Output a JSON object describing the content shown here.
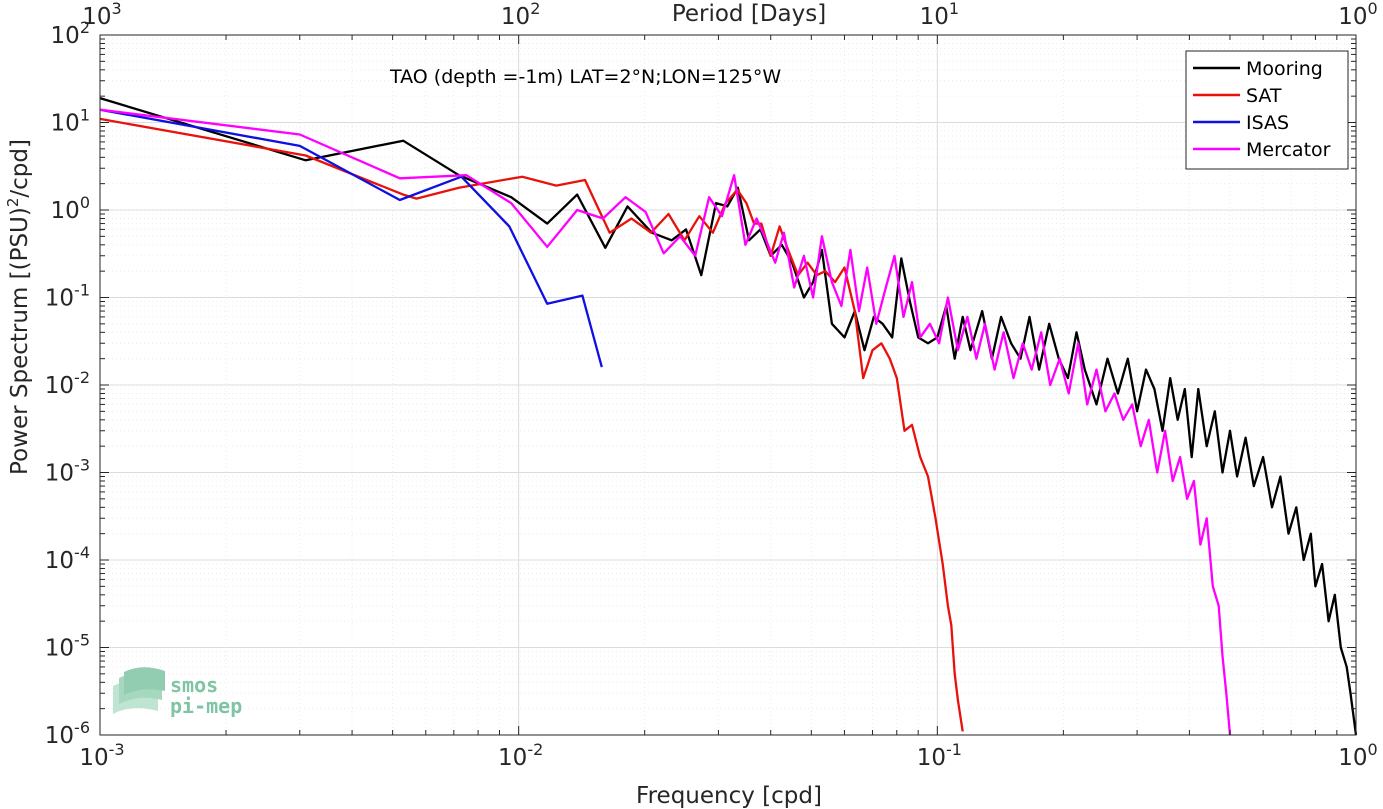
{
  "chart_data": {
    "type": "line",
    "annotation": "TAO (depth =-1m) LAT=2°N;LON=125°W",
    "xlabel": "Frequency [cpd]",
    "ylabel": "Power Spectrum [(PSU)",
    "ylabel_sup": "2",
    "ylabel_tail": "/cpd]",
    "top_axis_label": "Period [Days]",
    "x_scale": "log",
    "y_scale": "log",
    "xlim": [
      0.001,
      1
    ],
    "ylim": [
      1e-06,
      100
    ],
    "grid": true,
    "legend_position": "top-right",
    "x_ticks": [
      {
        "value": 0.001,
        "base": "10",
        "exp": "-3"
      },
      {
        "value": 0.01,
        "base": "10",
        "exp": "-2"
      },
      {
        "value": 0.1,
        "base": "10",
        "exp": "-1"
      },
      {
        "value": 1,
        "base": "10",
        "exp": "0"
      }
    ],
    "top_ticks": [
      {
        "value": 0.001,
        "base": "10",
        "exp": "3"
      },
      {
        "value": 0.01,
        "base": "10",
        "exp": "2"
      },
      {
        "value": 0.1,
        "base": "10",
        "exp": "1"
      },
      {
        "value": 1,
        "base": "10",
        "exp": "0"
      }
    ],
    "y_ticks": [
      {
        "value": 100,
        "base": "10",
        "exp": "2"
      },
      {
        "value": 10,
        "base": "10",
        "exp": "1"
      },
      {
        "value": 1,
        "base": "10",
        "exp": "0"
      },
      {
        "value": 0.1,
        "base": "10",
        "exp": "-1"
      },
      {
        "value": 0.01,
        "base": "10",
        "exp": "-2"
      },
      {
        "value": 0.001,
        "base": "10",
        "exp": "-3"
      },
      {
        "value": 0.0001,
        "base": "10",
        "exp": "-4"
      },
      {
        "value": 1e-05,
        "base": "10",
        "exp": "-5"
      },
      {
        "value": 1e-06,
        "base": "10",
        "exp": "-6"
      }
    ],
    "series": [
      {
        "name": "Mooring",
        "color": "#000000",
        "points": [
          [
            0.001,
            19
          ],
          [
            0.0031,
            3.7
          ],
          [
            0.0053,
            6.2
          ],
          [
            0.0072,
            2.5
          ],
          [
            0.0096,
            1.4
          ],
          [
            0.0117,
            0.7
          ],
          [
            0.0138,
            1.5
          ],
          [
            0.0161,
            0.37
          ],
          [
            0.0182,
            1.1
          ],
          [
            0.0208,
            0.55
          ],
          [
            0.0232,
            0.45
          ],
          [
            0.0251,
            0.6
          ],
          [
            0.0273,
            0.18
          ],
          [
            0.0296,
            1.2
          ],
          [
            0.0315,
            1.1
          ],
          [
            0.0334,
            1.8
          ],
          [
            0.0355,
            0.45
          ],
          [
            0.0378,
            0.6
          ],
          [
            0.04,
            0.3
          ],
          [
            0.0425,
            0.4
          ],
          [
            0.045,
            0.25
          ],
          [
            0.048,
            0.1
          ],
          [
            0.0505,
            0.15
          ],
          [
            0.053,
            0.35
          ],
          [
            0.056,
            0.05
          ],
          [
            0.06,
            0.035
          ],
          [
            0.0635,
            0.07
          ],
          [
            0.067,
            0.025
          ],
          [
            0.0705,
            0.06
          ],
          [
            0.074,
            0.05
          ],
          [
            0.078,
            0.035
          ],
          [
            0.082,
            0.28
          ],
          [
            0.086,
            0.09
          ],
          [
            0.09,
            0.035
          ],
          [
            0.095,
            0.03
          ],
          [
            0.1,
            0.035
          ],
          [
            0.105,
            0.08
          ],
          [
            0.11,
            0.02
          ],
          [
            0.115,
            0.06
          ],
          [
            0.12,
            0.025
          ],
          [
            0.128,
            0.07
          ],
          [
            0.135,
            0.02
          ],
          [
            0.142,
            0.06
          ],
          [
            0.15,
            0.03
          ],
          [
            0.158,
            0.02
          ],
          [
            0.166,
            0.06
          ],
          [
            0.175,
            0.015
          ],
          [
            0.185,
            0.05
          ],
          [
            0.195,
            0.02
          ],
          [
            0.205,
            0.012
          ],
          [
            0.215,
            0.04
          ],
          [
            0.225,
            0.015
          ],
          [
            0.24,
            0.006
          ],
          [
            0.255,
            0.02
          ],
          [
            0.27,
            0.008
          ],
          [
            0.285,
            0.02
          ],
          [
            0.3,
            0.005
          ],
          [
            0.315,
            0.015
          ],
          [
            0.33,
            0.009
          ],
          [
            0.345,
            0.003
          ],
          [
            0.36,
            0.012
          ],
          [
            0.375,
            0.004
          ],
          [
            0.39,
            0.009
          ],
          [
            0.405,
            0.0015
          ],
          [
            0.42,
            0.009
          ],
          [
            0.44,
            0.002
          ],
          [
            0.46,
            0.005
          ],
          [
            0.48,
            0.001
          ],
          [
            0.5,
            0.003
          ],
          [
            0.52,
            0.0009
          ],
          [
            0.545,
            0.0025
          ],
          [
            0.57,
            0.0007
          ],
          [
            0.6,
            0.0015
          ],
          [
            0.63,
            0.0004
          ],
          [
            0.66,
            0.0009
          ],
          [
            0.69,
            0.0002
          ],
          [
            0.72,
            0.0004
          ],
          [
            0.75,
            0.0001
          ],
          [
            0.78,
            0.0002
          ],
          [
            0.8,
            5e-05
          ],
          [
            0.83,
            9e-05
          ],
          [
            0.86,
            2e-05
          ],
          [
            0.89,
            4e-05
          ],
          [
            0.92,
            1e-05
          ],
          [
            0.95,
            6e-06
          ],
          [
            0.97,
            3e-06
          ],
          [
            1,
            1e-06
          ]
        ]
      },
      {
        "name": "SAT",
        "color": "#e8120c",
        "points": [
          [
            0.001,
            11
          ],
          [
            0.0031,
            4.2
          ],
          [
            0.0053,
            1.5
          ],
          [
            0.0057,
            1.35
          ],
          [
            0.0072,
            1.8
          ],
          [
            0.0102,
            2.4
          ],
          [
            0.0123,
            1.9
          ],
          [
            0.0144,
            2.2
          ],
          [
            0.0165,
            0.55
          ],
          [
            0.0186,
            0.8
          ],
          [
            0.0207,
            0.55
          ],
          [
            0.0228,
            0.9
          ],
          [
            0.0249,
            0.45
          ],
          [
            0.027,
            0.85
          ],
          [
            0.0291,
            0.55
          ],
          [
            0.0312,
            1.2
          ],
          [
            0.0333,
            1.7
          ],
          [
            0.035,
            1.2
          ],
          [
            0.0365,
            0.7
          ],
          [
            0.038,
            0.7
          ],
          [
            0.04,
            0.3
          ],
          [
            0.042,
            0.65
          ],
          [
            0.044,
            0.35
          ],
          [
            0.0465,
            0.18
          ],
          [
            0.049,
            0.25
          ],
          [
            0.0515,
            0.18
          ],
          [
            0.054,
            0.2
          ],
          [
            0.057,
            0.15
          ],
          [
            0.06,
            0.22
          ],
          [
            0.0635,
            0.07
          ],
          [
            0.0665,
            0.012
          ],
          [
            0.07,
            0.025
          ],
          [
            0.0735,
            0.03
          ],
          [
            0.077,
            0.02
          ],
          [
            0.08,
            0.012
          ],
          [
            0.0835,
            0.003
          ],
          [
            0.087,
            0.0035
          ],
          [
            0.091,
            0.0015
          ],
          [
            0.095,
            0.0009
          ],
          [
            0.099,
            0.0003
          ],
          [
            0.103,
            9e-05
          ],
          [
            0.106,
            3e-05
          ],
          [
            0.108,
            1.8e-05
          ],
          [
            0.11,
            5e-06
          ],
          [
            0.112,
            2.5e-06
          ],
          [
            0.115,
            1.1e-06
          ]
        ]
      },
      {
        "name": "ISAS",
        "color": "#1010e0",
        "points": [
          [
            0.001,
            14
          ],
          [
            0.003,
            5.4
          ],
          [
            0.0052,
            1.3
          ],
          [
            0.0073,
            2.4
          ],
          [
            0.0095,
            0.65
          ],
          [
            0.0117,
            0.085
          ],
          [
            0.0142,
            0.105
          ],
          [
            0.0158,
            0.016
          ]
        ]
      },
      {
        "name": "Mercator",
        "color": "#ff00ff",
        "points": [
          [
            0.001,
            14
          ],
          [
            0.003,
            7.3
          ],
          [
            0.0052,
            2.3
          ],
          [
            0.0075,
            2.5
          ],
          [
            0.0096,
            1.2
          ],
          [
            0.0117,
            0.38
          ],
          [
            0.0138,
            1.0
          ],
          [
            0.0159,
            0.8
          ],
          [
            0.018,
            1.4
          ],
          [
            0.0201,
            0.95
          ],
          [
            0.0222,
            0.32
          ],
          [
            0.0243,
            0.5
          ],
          [
            0.0264,
            0.3
          ],
          [
            0.0285,
            1.4
          ],
          [
            0.0306,
            0.85
          ],
          [
            0.0327,
            2.5
          ],
          [
            0.0348,
            0.4
          ],
          [
            0.037,
            0.8
          ],
          [
            0.039,
            0.45
          ],
          [
            0.041,
            0.25
          ],
          [
            0.043,
            0.55
          ],
          [
            0.0455,
            0.13
          ],
          [
            0.048,
            0.3
          ],
          [
            0.0505,
            0.1
          ],
          [
            0.053,
            0.5
          ],
          [
            0.056,
            0.15
          ],
          [
            0.059,
            0.08
          ],
          [
            0.062,
            0.35
          ],
          [
            0.065,
            0.07
          ],
          [
            0.068,
            0.22
          ],
          [
            0.0715,
            0.05
          ],
          [
            0.075,
            0.12
          ],
          [
            0.079,
            0.3
          ],
          [
            0.083,
            0.06
          ],
          [
            0.087,
            0.15
          ],
          [
            0.091,
            0.035
          ],
          [
            0.096,
            0.05
          ],
          [
            0.101,
            0.03
          ],
          [
            0.106,
            0.1
          ],
          [
            0.112,
            0.025
          ],
          [
            0.118,
            0.06
          ],
          [
            0.124,
            0.02
          ],
          [
            0.13,
            0.05
          ],
          [
            0.137,
            0.015
          ],
          [
            0.144,
            0.04
          ],
          [
            0.152,
            0.012
          ],
          [
            0.16,
            0.03
          ],
          [
            0.168,
            0.015
          ],
          [
            0.177,
            0.04
          ],
          [
            0.186,
            0.01
          ],
          [
            0.196,
            0.02
          ],
          [
            0.206,
            0.008
          ],
          [
            0.217,
            0.03
          ],
          [
            0.228,
            0.006
          ],
          [
            0.24,
            0.015
          ],
          [
            0.252,
            0.005
          ],
          [
            0.265,
            0.008
          ],
          [
            0.278,
            0.004
          ],
          [
            0.292,
            0.006
          ],
          [
            0.306,
            0.002
          ],
          [
            0.32,
            0.004
          ],
          [
            0.335,
            0.001
          ],
          [
            0.35,
            0.003
          ],
          [
            0.365,
            0.0008
          ],
          [
            0.38,
            0.0015
          ],
          [
            0.395,
            0.0005
          ],
          [
            0.41,
            0.0008
          ],
          [
            0.425,
            0.00015
          ],
          [
            0.44,
            0.0003
          ],
          [
            0.455,
            5e-05
          ],
          [
            0.47,
            3e-05
          ],
          [
            0.48,
            8e-06
          ],
          [
            0.49,
            3e-06
          ],
          [
            0.5,
            1e-06
          ]
        ]
      }
    ],
    "logo": {
      "line1": "smos",
      "line2": "pi-mep",
      "color": "#7fc4a4"
    }
  }
}
